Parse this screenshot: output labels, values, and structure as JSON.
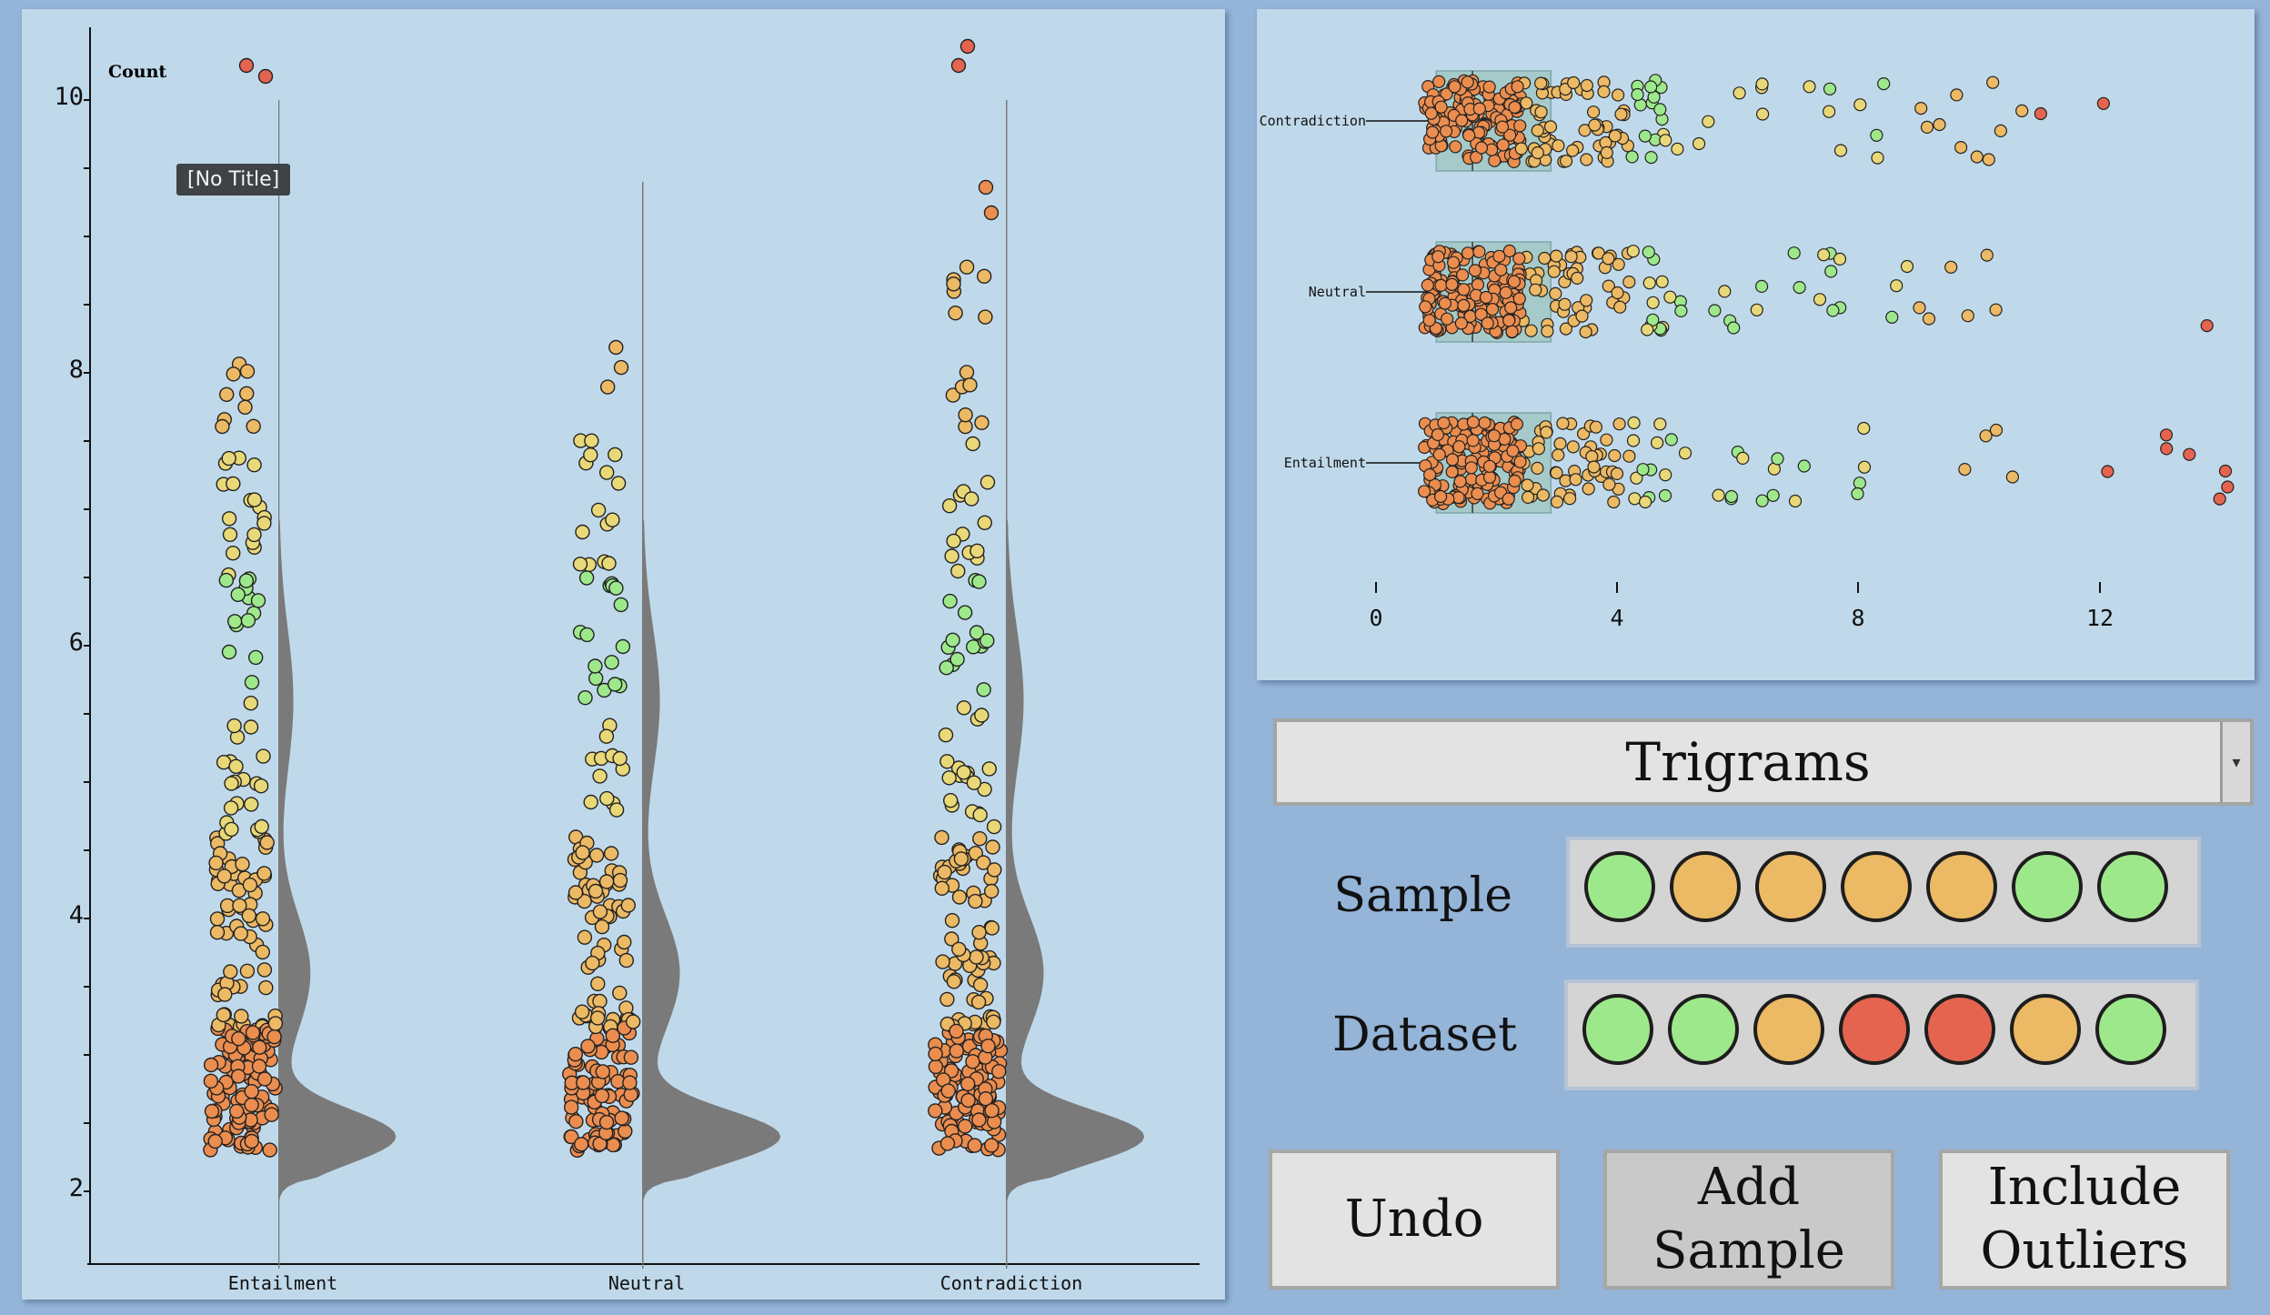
{
  "violin_plot": {
    "y_axis_title": "Count",
    "y_ticks": [
      "10",
      "8",
      "6",
      "4",
      "2"
    ],
    "categories": [
      "Entailment",
      "Neutral",
      "Contradiction"
    ],
    "tooltip": "[No Title]"
  },
  "box_plot": {
    "categories": [
      "Contradiction",
      "Neutral",
      "Entailment"
    ],
    "x_ticks": [
      "0",
      "4",
      "8",
      "12"
    ]
  },
  "dropdown": {
    "selected": "Trigrams"
  },
  "sample_row": {
    "label": "Sample",
    "dots": [
      "#9ee88c",
      "#ecb964",
      "#ecb964",
      "#ecb964",
      "#ecb964",
      "#9ee88c",
      "#9ee88c"
    ]
  },
  "dataset_row": {
    "label": "Dataset",
    "dots": [
      "#9ee88c",
      "#9ee88c",
      "#ecb964",
      "#e5644f",
      "#e5644f",
      "#ecb964",
      "#9ee88c"
    ]
  },
  "buttons": {
    "undo": "Undo",
    "add_sample": "Add\nSample",
    "include_outliers": "Include\nOutliers"
  },
  "colors": {
    "background": "#94b4d8",
    "panel": "#c0d9ea",
    "violin": "#7a7a7a",
    "box_fill": "#a5cac9",
    "green": "#9ee88c",
    "yellow": "#e8d878",
    "orange": "#ecb964",
    "deep_orange": "#eb8d4f",
    "red": "#e5644f"
  }
}
